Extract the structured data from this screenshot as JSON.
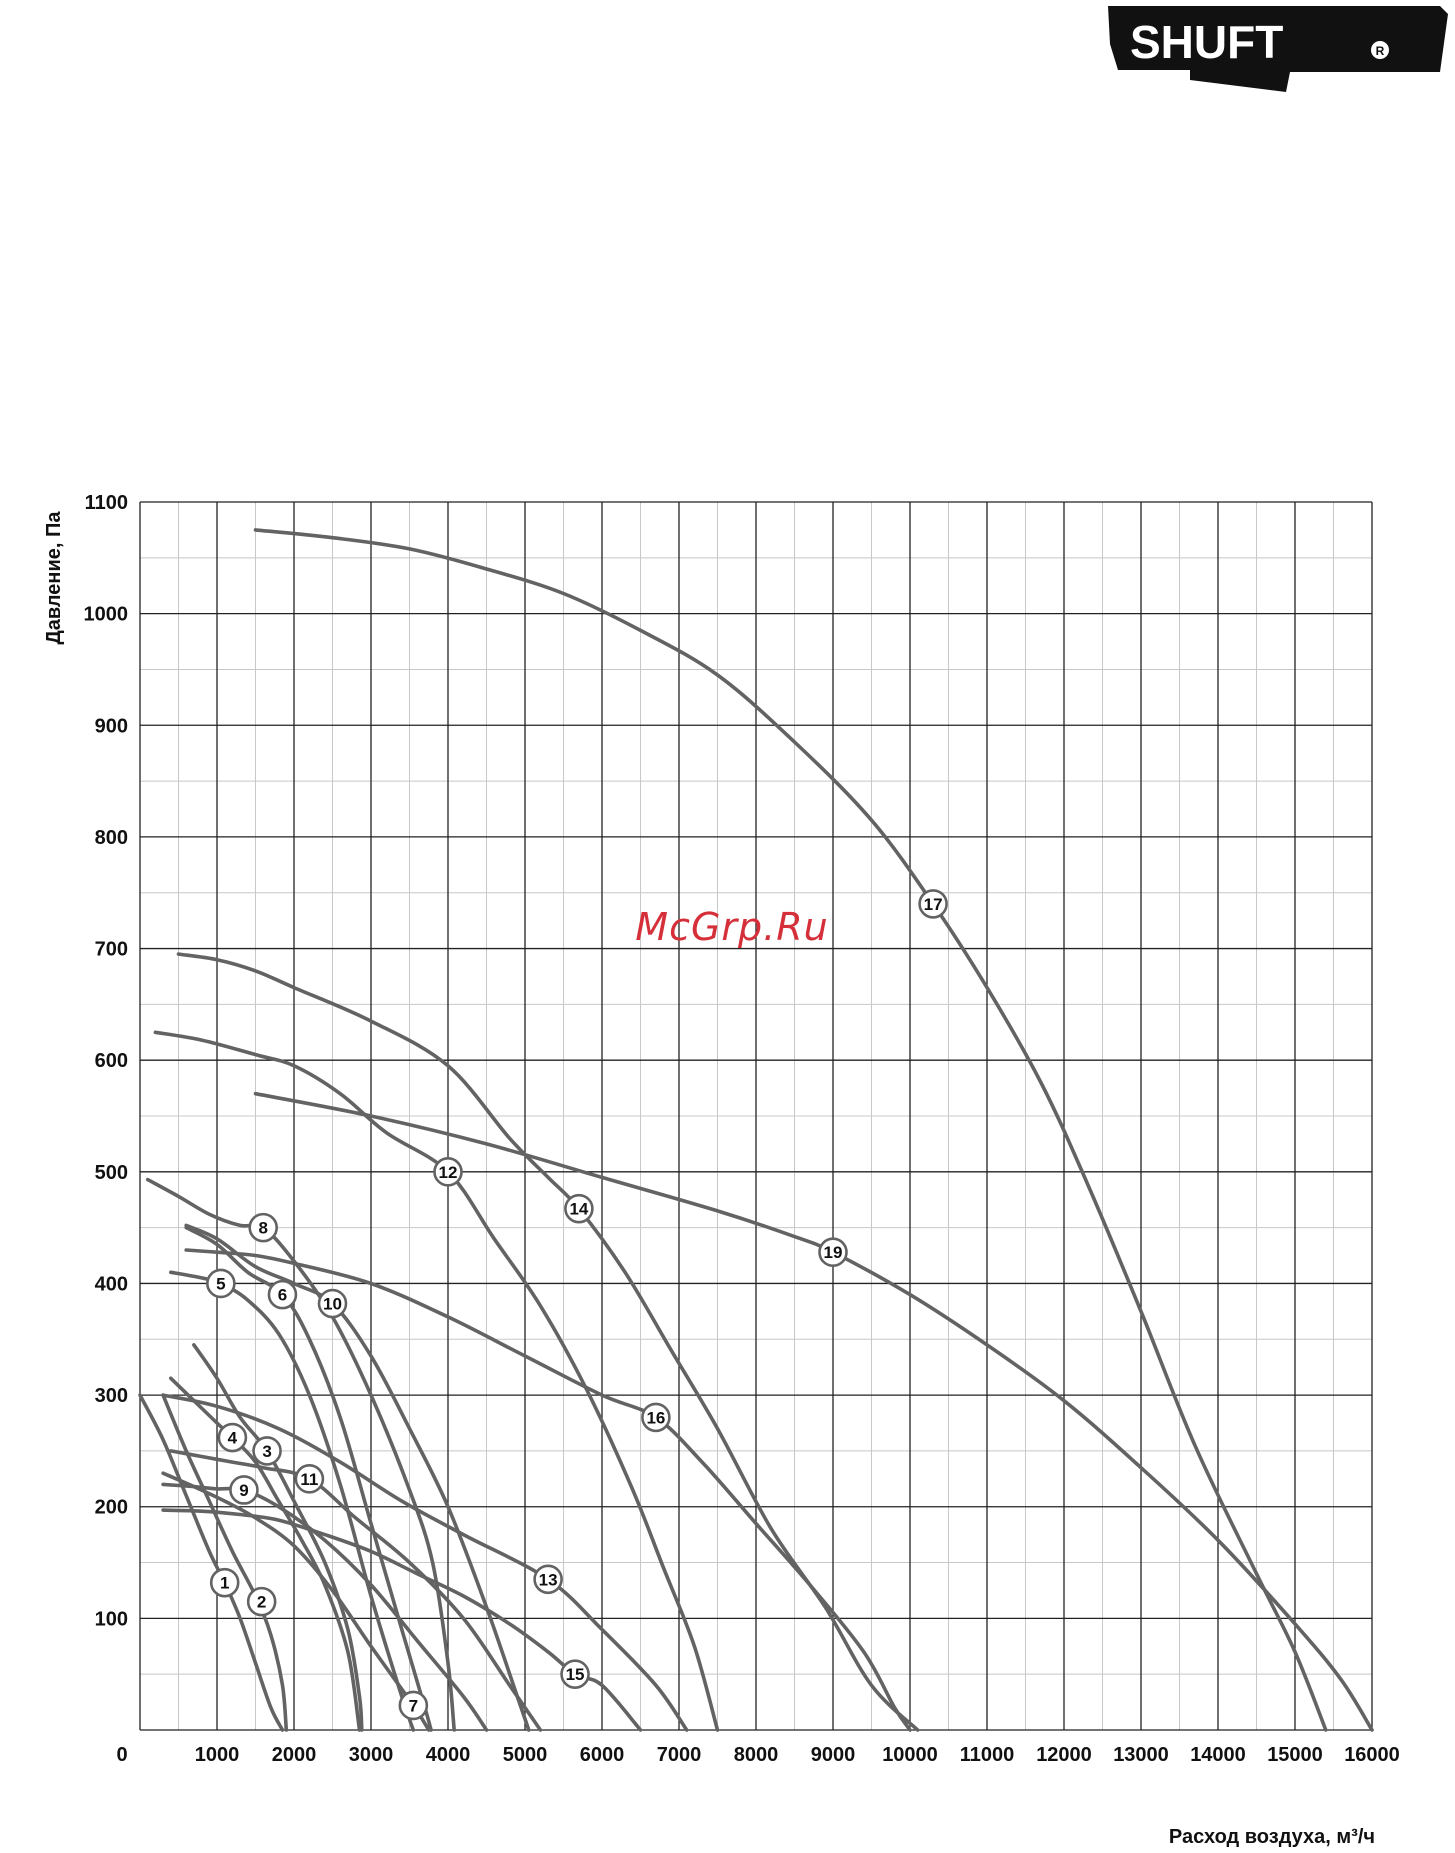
{
  "brand": {
    "logo_text": "SHUFT",
    "registered_mark": "R"
  },
  "watermark": {
    "text": "McGrp.Ru",
    "color": "#d5303a"
  },
  "colors": {
    "curve": "#636363",
    "grid_major": "#222222",
    "grid_minor": "#c8c8c8",
    "text": "#111111"
  },
  "chart_data": {
    "type": "line",
    "title": "",
    "xlabel": "Расход воздуха, м³/ч",
    "ylabel": "Давление, Па",
    "xlim": [
      0,
      16000
    ],
    "ylim": [
      0,
      1100
    ],
    "grid": true,
    "origin_label": "0",
    "x_ticks": [
      1000,
      2000,
      3000,
      4000,
      5000,
      6000,
      7000,
      8000,
      9000,
      10000,
      11000,
      12000,
      13000,
      14000,
      15000,
      16000
    ],
    "y_ticks": [
      100,
      200,
      300,
      400,
      500,
      600,
      700,
      800,
      900,
      1000,
      1100
    ],
    "series": [
      {
        "name": "1",
        "label_at": [
          1100,
          132
        ],
        "points": [
          [
            0,
            300
          ],
          [
            300,
            260
          ],
          [
            600,
            210
          ],
          [
            900,
            160
          ],
          [
            1100,
            132
          ],
          [
            1300,
            100
          ],
          [
            1500,
            60
          ],
          [
            1700,
            20
          ],
          [
            1850,
            0
          ]
        ]
      },
      {
        "name": "2",
        "label_at": [
          1580,
          115
        ],
        "points": [
          [
            300,
            300
          ],
          [
            600,
            250
          ],
          [
            900,
            205
          ],
          [
            1200,
            160
          ],
          [
            1500,
            120
          ],
          [
            1700,
            85
          ],
          [
            1850,
            40
          ],
          [
            1900,
            0
          ]
        ]
      },
      {
        "name": "3",
        "label_at": [
          1650,
          250
        ],
        "points": [
          [
            700,
            345
          ],
          [
            1000,
            315
          ],
          [
            1300,
            280
          ],
          [
            1650,
            250
          ],
          [
            2000,
            205
          ],
          [
            2400,
            150
          ],
          [
            2700,
            90
          ],
          [
            2850,
            30
          ],
          [
            2880,
            0
          ]
        ]
      },
      {
        "name": "4",
        "label_at": [
          1200,
          262
        ],
        "points": [
          [
            400,
            315
          ],
          [
            700,
            295
          ],
          [
            1000,
            275
          ],
          [
            1200,
            262
          ],
          [
            1500,
            240
          ],
          [
            1800,
            205
          ],
          [
            2100,
            170
          ],
          [
            2400,
            130
          ],
          [
            2700,
            70
          ],
          [
            2850,
            0
          ]
        ]
      },
      {
        "name": "5",
        "label_at": [
          1050,
          400
        ],
        "points": [
          [
            400,
            410
          ],
          [
            800,
            405
          ],
          [
            1050,
            400
          ],
          [
            1400,
            385
          ],
          [
            1800,
            355
          ],
          [
            2200,
            300
          ],
          [
            2600,
            220
          ],
          [
            3000,
            120
          ],
          [
            3400,
            30
          ],
          [
            3550,
            0
          ]
        ]
      },
      {
        "name": "6",
        "label_at": [
          1850,
          390
        ],
        "points": [
          [
            600,
            450
          ],
          [
            1000,
            435
          ],
          [
            1400,
            410
          ],
          [
            1850,
            390
          ],
          [
            2200,
            350
          ],
          [
            2600,
            280
          ],
          [
            3000,
            185
          ],
          [
            3400,
            90
          ],
          [
            3700,
            20
          ],
          [
            3780,
            0
          ]
        ]
      },
      {
        "name": "7",
        "label_at": [
          3550,
          22
        ],
        "points": [
          [
            300,
            230
          ],
          [
            700,
            218
          ],
          [
            1100,
            205
          ],
          [
            1500,
            190
          ],
          [
            2000,
            165
          ],
          [
            2500,
            125
          ],
          [
            3000,
            75
          ],
          [
            3550,
            22
          ],
          [
            3750,
            0
          ]
        ]
      },
      {
        "name": "8",
        "label_at": [
          1600,
          450
        ],
        "points": [
          [
            100,
            493
          ],
          [
            500,
            478
          ],
          [
            900,
            462
          ],
          [
            1300,
            452
          ],
          [
            1600,
            450
          ],
          [
            2000,
            420
          ],
          [
            2500,
            370
          ],
          [
            3000,
            300
          ],
          [
            3500,
            215
          ],
          [
            3800,
            150
          ],
          [
            4000,
            60
          ],
          [
            4080,
            0
          ]
        ]
      },
      {
        "name": "9",
        "label_at": [
          1350,
          215
        ],
        "points": [
          [
            300,
            220
          ],
          [
            700,
            218
          ],
          [
            1000,
            216
          ],
          [
            1350,
            215
          ],
          [
            1800,
            200
          ],
          [
            2400,
            170
          ],
          [
            3000,
            130
          ],
          [
            3600,
            80
          ],
          [
            4200,
            30
          ],
          [
            4500,
            0
          ]
        ]
      },
      {
        "name": "10",
        "label_at": [
          2500,
          382
        ],
        "points": [
          [
            600,
            452
          ],
          [
            1000,
            440
          ],
          [
            1500,
            415
          ],
          [
            2000,
            400
          ],
          [
            2500,
            382
          ],
          [
            3000,
            335
          ],
          [
            3500,
            270
          ],
          [
            4000,
            200
          ],
          [
            4500,
            110
          ],
          [
            4900,
            30
          ],
          [
            5050,
            0
          ]
        ]
      },
      {
        "name": "11",
        "label_at": [
          2200,
          225
        ],
        "points": [
          [
            400,
            250
          ],
          [
            800,
            245
          ],
          [
            1200,
            240
          ],
          [
            1600,
            235
          ],
          [
            2200,
            225
          ],
          [
            2800,
            190
          ],
          [
            3500,
            150
          ],
          [
            4200,
            100
          ],
          [
            4800,
            40
          ],
          [
            5200,
            0
          ]
        ]
      },
      {
        "name": "12",
        "label_at": [
          4000,
          500
        ],
        "points": [
          [
            200,
            625
          ],
          [
            800,
            618
          ],
          [
            1500,
            605
          ],
          [
            2000,
            595
          ],
          [
            2600,
            570
          ],
          [
            3200,
            535
          ],
          [
            4000,
            500
          ],
          [
            4600,
            440
          ],
          [
            5200,
            380
          ],
          [
            5800,
            305
          ],
          [
            6400,
            215
          ],
          [
            6800,
            145
          ],
          [
            7200,
            75
          ],
          [
            7500,
            0
          ]
        ]
      },
      {
        "name": "13",
        "label_at": [
          5300,
          135
        ],
        "points": [
          [
            300,
            300
          ],
          [
            1000,
            290
          ],
          [
            1800,
            270
          ],
          [
            2600,
            240
          ],
          [
            3400,
            205
          ],
          [
            4200,
            175
          ],
          [
            5300,
            135
          ],
          [
            6000,
            90
          ],
          [
            6700,
            40
          ],
          [
            7100,
            0
          ]
        ]
      },
      {
        "name": "14",
        "label_at": [
          5700,
          467
        ],
        "points": [
          [
            500,
            695
          ],
          [
            1000,
            690
          ],
          [
            1500,
            680
          ],
          [
            2000,
            665
          ],
          [
            3000,
            635
          ],
          [
            4000,
            595
          ],
          [
            4800,
            530
          ],
          [
            5300,
            495
          ],
          [
            5700,
            467
          ],
          [
            6300,
            410
          ],
          [
            6900,
            340
          ],
          [
            7500,
            270
          ],
          [
            8200,
            180
          ],
          [
            8900,
            110
          ],
          [
            9500,
            40
          ],
          [
            10100,
            0
          ]
        ]
      },
      {
        "name": "15",
        "label_at": [
          5650,
          50
        ],
        "points": [
          [
            300,
            197
          ],
          [
            800,
            196
          ],
          [
            1300,
            193
          ],
          [
            1800,
            188
          ],
          [
            2400,
            175
          ],
          [
            3000,
            160
          ],
          [
            3600,
            140
          ],
          [
            4200,
            120
          ],
          [
            4800,
            95
          ],
          [
            5300,
            70
          ],
          [
            5650,
            50
          ],
          [
            6000,
            40
          ],
          [
            6500,
            0
          ]
        ]
      },
      {
        "name": "16",
        "label_at": [
          6700,
          280
        ],
        "points": [
          [
            600,
            430
          ],
          [
            1000,
            428
          ],
          [
            1500,
            425
          ],
          [
            2000,
            418
          ],
          [
            3000,
            400
          ],
          [
            4000,
            370
          ],
          [
            5000,
            335
          ],
          [
            6000,
            300
          ],
          [
            6700,
            280
          ],
          [
            7300,
            240
          ],
          [
            8000,
            185
          ],
          [
            8700,
            130
          ],
          [
            9400,
            70
          ],
          [
            9800,
            20
          ],
          [
            10000,
            0
          ]
        ]
      },
      {
        "name": "17",
        "label_at": [
          10300,
          740
        ],
        "points": [
          [
            1500,
            1075
          ],
          [
            2500,
            1068
          ],
          [
            3500,
            1058
          ],
          [
            4500,
            1040
          ],
          [
            5500,
            1018
          ],
          [
            6500,
            985
          ],
          [
            7500,
            945
          ],
          [
            8500,
            885
          ],
          [
            9500,
            815
          ],
          [
            10300,
            740
          ],
          [
            11000,
            665
          ],
          [
            11700,
            580
          ],
          [
            12300,
            490
          ],
          [
            13000,
            375
          ],
          [
            13700,
            255
          ],
          [
            14500,
            140
          ],
          [
            15000,
            70
          ],
          [
            15400,
            0
          ]
        ]
      },
      {
        "name": "19",
        "label_at": [
          9000,
          428
        ],
        "points": [
          [
            1500,
            570
          ],
          [
            3000,
            550
          ],
          [
            4500,
            525
          ],
          [
            6000,
            495
          ],
          [
            7500,
            465
          ],
          [
            8500,
            442
          ],
          [
            9000,
            428
          ],
          [
            10000,
            390
          ],
          [
            11000,
            345
          ],
          [
            12000,
            295
          ],
          [
            13000,
            235
          ],
          [
            14000,
            170
          ],
          [
            15000,
            95
          ],
          [
            15600,
            45
          ],
          [
            16000,
            0
          ]
        ]
      }
    ]
  }
}
